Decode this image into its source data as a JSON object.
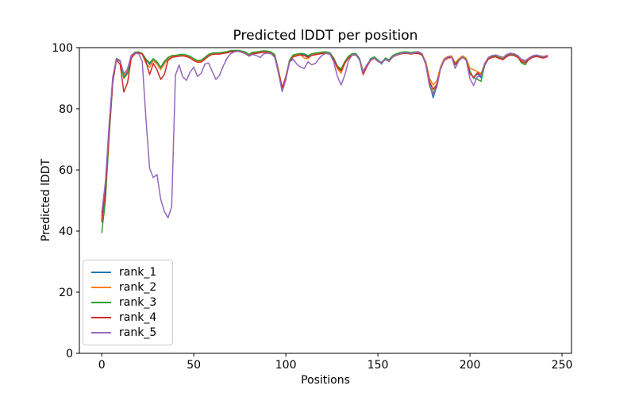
{
  "figure": {
    "background": "#ffffff"
  },
  "chart_data": {
    "type": "line",
    "title": "Predicted lDDT per position",
    "xlabel": "Positions",
    "ylabel": "Predicted lDDT",
    "xlim": [
      -12.15,
      255.15
    ],
    "ylim": [
      0,
      100
    ],
    "x_ticks": [
      0,
      50,
      100,
      150,
      200,
      250
    ],
    "y_ticks": [
      0,
      20,
      40,
      60,
      80,
      100
    ],
    "grid": false,
    "legend": {
      "position": "lower-left",
      "entries": [
        "rank_1",
        "rank_2",
        "rank_3",
        "rank_4",
        "rank_5"
      ]
    },
    "x": [
      0,
      2,
      4,
      6,
      8,
      10,
      12,
      14,
      16,
      18,
      20,
      22,
      24,
      26,
      28,
      30,
      32,
      34,
      36,
      38,
      40,
      42,
      44,
      46,
      48,
      50,
      52,
      54,
      56,
      58,
      60,
      62,
      64,
      66,
      68,
      70,
      72,
      74,
      76,
      78,
      80,
      82,
      84,
      86,
      88,
      90,
      92,
      94,
      96,
      98,
      100,
      102,
      104,
      106,
      108,
      110,
      112,
      114,
      116,
      118,
      120,
      122,
      124,
      126,
      128,
      130,
      132,
      134,
      136,
      138,
      140,
      142,
      144,
      146,
      148,
      150,
      152,
      154,
      156,
      158,
      160,
      162,
      164,
      166,
      168,
      170,
      172,
      174,
      176,
      178,
      180,
      182,
      184,
      186,
      188,
      190,
      192,
      194,
      196,
      198,
      200,
      202,
      204,
      206,
      208,
      210,
      212,
      214,
      216,
      218,
      220,
      222,
      224,
      226,
      228,
      230,
      232,
      234,
      236,
      238,
      240,
      242
    ],
    "series": [
      {
        "name": "rank_1",
        "color": "#1f77b4",
        "values": [
          45,
          55,
          74,
          90,
          96.5,
          95.8,
          90.5,
          92,
          97.3,
          98.4,
          98.5,
          98,
          96,
          94.5,
          96.2,
          95.2,
          93.3,
          95,
          96.6,
          97.2,
          97.3,
          97.5,
          97.6,
          97.4,
          97,
          96.2,
          95.6,
          95.7,
          96.6,
          97.6,
          98,
          98.1,
          98.1,
          98.3,
          98.5,
          98.8,
          99,
          99,
          98.8,
          98.4,
          97.6,
          98.3,
          98.4,
          98.6,
          98.8,
          98.7,
          98.4,
          97.5,
          92.5,
          86.3,
          90.5,
          95.8,
          97.4,
          97.7,
          97.9,
          97.8,
          97.2,
          97.8,
          98,
          98.2,
          98.4,
          98.4,
          98.1,
          96.4,
          93.8,
          92.8,
          95.2,
          97,
          97.8,
          97.9,
          96.3,
          91.5,
          94.2,
          96.2,
          96.8,
          95.8,
          95.2,
          96.4,
          95.8,
          97.2,
          97.8,
          98.2,
          98.4,
          98.4,
          98.2,
          98.4,
          98.4,
          97.8,
          95,
          88.5,
          83.6,
          87.5,
          93.5,
          96.2,
          97,
          97.2,
          94.8,
          96.2,
          97.2,
          96.3,
          92.3,
          90,
          91.5,
          90.2,
          94.5,
          96.6,
          97.2,
          97.4,
          96.8,
          96.5,
          97.5,
          98,
          97.8,
          97.2,
          95.8,
          95.4,
          96.5,
          97.2,
          97.5,
          97.2,
          97,
          97.4
        ]
      },
      {
        "name": "rank_2",
        "color": "#ff7f0e",
        "values": [
          44,
          54,
          73,
          89.5,
          96.2,
          95.5,
          91,
          92.5,
          97,
          98.2,
          98.4,
          97.8,
          94.8,
          93.6,
          95.8,
          94.6,
          92.8,
          94.6,
          96.2,
          97,
          97.2,
          97.4,
          97.5,
          97.2,
          96.8,
          96,
          95.4,
          95.5,
          96.4,
          97.4,
          97.9,
          98,
          98,
          98.2,
          98.4,
          98.7,
          98.9,
          98.9,
          98.7,
          98.2,
          97.4,
          98.1,
          98.2,
          98.4,
          98.6,
          98.5,
          98.2,
          97.2,
          92.8,
          86.6,
          90.8,
          95.5,
          97.2,
          97.5,
          97.7,
          96.6,
          96.4,
          97.6,
          97.8,
          98,
          98.2,
          98.2,
          97.9,
          96,
          93.2,
          91.6,
          94.8,
          96.8,
          97.6,
          97.7,
          96,
          92.3,
          94.4,
          96,
          96.6,
          95.6,
          95,
          96.2,
          95.6,
          97,
          97.6,
          98,
          98.2,
          98.2,
          98,
          98.2,
          98.2,
          97.6,
          95.5,
          90,
          87.8,
          89,
          93.8,
          96.4,
          97.1,
          97.3,
          95,
          96.4,
          97.3,
          96.5,
          93.2,
          92.8,
          92.2,
          91.5,
          94.8,
          96.8,
          97.3,
          97.5,
          97,
          96.7,
          97.6,
          98.1,
          97.9,
          97.3,
          96,
          95.6,
          96.6,
          97.3,
          97.6,
          97.3,
          97.1,
          97.5
        ]
      },
      {
        "name": "rank_3",
        "color": "#2ca02c",
        "values": [
          39.5,
          50,
          71,
          88.5,
          96.3,
          95.6,
          90,
          91.5,
          97.4,
          98.5,
          98.6,
          98.1,
          96.3,
          95,
          96.4,
          95.4,
          93.6,
          95.5,
          96.8,
          97.4,
          97.5,
          97.7,
          97.8,
          97.6,
          97.2,
          96.4,
          95.8,
          95.9,
          96.8,
          97.8,
          98.2,
          98.3,
          98.3,
          98.5,
          98.7,
          99,
          99.1,
          99.1,
          98.9,
          98.6,
          97.8,
          98.5,
          98.6,
          98.8,
          99,
          98.9,
          98.6,
          97.7,
          92.2,
          86.8,
          90.2,
          96,
          97.6,
          97.9,
          98.1,
          98,
          97.4,
          98,
          98.2,
          98.4,
          98.6,
          98.6,
          98.3,
          96.6,
          94,
          93,
          95.4,
          97.2,
          98,
          98.1,
          96.5,
          92.2,
          94,
          96.4,
          97,
          96,
          94.6,
          96.6,
          96,
          97.4,
          98,
          98.4,
          98.6,
          98.6,
          98.4,
          98.6,
          98.6,
          98,
          94.8,
          88,
          85,
          87.8,
          93.2,
          96,
          96.8,
          97,
          94.6,
          96,
          97,
          96.1,
          92,
          90.2,
          89.6,
          89,
          94.2,
          96.4,
          97,
          97.2,
          96.6,
          96.3,
          97.3,
          97.8,
          97.6,
          97,
          95,
          94.4,
          96.3,
          97,
          97.3,
          97,
          96.8,
          97.2
        ]
      },
      {
        "name": "rank_4",
        "color": "#d62728",
        "values": [
          43,
          53,
          72,
          89,
          96,
          94.5,
          85.5,
          88.5,
          96.5,
          98,
          98.3,
          97.9,
          95.5,
          91.2,
          94.8,
          92.8,
          89.6,
          91.2,
          95.8,
          96.8,
          97,
          97.2,
          97.3,
          97.1,
          96.6,
          95.8,
          95.2,
          95.3,
          96.2,
          97.2,
          97.8,
          97.9,
          97.9,
          98.1,
          98.3,
          98.6,
          98.8,
          98.8,
          98.6,
          98.1,
          97.3,
          98,
          98.1,
          98.3,
          98.5,
          98.4,
          98.1,
          97,
          92,
          87,
          90,
          95.3,
          97,
          97.3,
          97.6,
          97.4,
          96.8,
          97.4,
          97.7,
          97.9,
          98.1,
          98.1,
          97.8,
          96.2,
          93.5,
          92.4,
          95,
          96.6,
          97.5,
          97.6,
          96.1,
          91.2,
          93.8,
          95.8,
          96.5,
          95.5,
          94.9,
          96.1,
          95.5,
          96.9,
          97.5,
          97.9,
          98.1,
          98.1,
          97.9,
          98.1,
          98.1,
          97.5,
          94.6,
          89,
          86.3,
          88,
          93,
          95.8,
          96.6,
          96.8,
          94.4,
          95.8,
          96.8,
          96,
          91.5,
          90.2,
          91.8,
          91,
          94.4,
          96.2,
          96.8,
          97,
          96.4,
          96.1,
          97.1,
          97.6,
          97.4,
          96.8,
          95.4,
          95,
          96.1,
          96.8,
          97.1,
          96.8,
          96.6,
          97
        ]
      },
      {
        "name": "rank_5",
        "color": "#9467bd",
        "values": [
          46,
          56,
          75,
          90.5,
          96.4,
          95.6,
          91.5,
          93,
          97.5,
          98.3,
          98,
          95.5,
          77,
          60.5,
          57.5,
          58.5,
          50.5,
          46.5,
          44.3,
          48,
          91,
          94.3,
          90.5,
          89.3,
          92,
          93.6,
          90.6,
          91.6,
          94.6,
          95,
          92.2,
          89.6,
          91,
          94,
          96.5,
          98,
          98.6,
          98.8,
          98.5,
          98,
          97.2,
          97.8,
          97.4,
          96.8,
          98,
          98.2,
          98,
          96.8,
          91.5,
          85.6,
          89.5,
          95.3,
          96.2,
          94.6,
          93.6,
          93.2,
          95.4,
          94.4,
          94.8,
          96.4,
          97.6,
          98.2,
          97.8,
          95.4,
          90.6,
          87.8,
          91,
          95.6,
          97.6,
          97.8,
          96,
          92,
          94.4,
          96,
          96.6,
          95.6,
          94.8,
          96.2,
          95.6,
          97,
          97.6,
          98,
          98.3,
          98.3,
          98,
          98.3,
          98.7,
          98,
          94.5,
          87.5,
          84.5,
          87,
          93,
          96,
          97,
          97,
          93.2,
          95.8,
          97,
          95.8,
          89.8,
          87.6,
          90.5,
          90.8,
          94.8,
          96.8,
          97.4,
          97.6,
          97.2,
          96.8,
          97.8,
          98.2,
          98,
          97.4,
          96.2,
          95.8,
          96.6,
          97.3,
          97.6,
          97.3,
          97.1,
          97.3
        ]
      }
    ]
  }
}
